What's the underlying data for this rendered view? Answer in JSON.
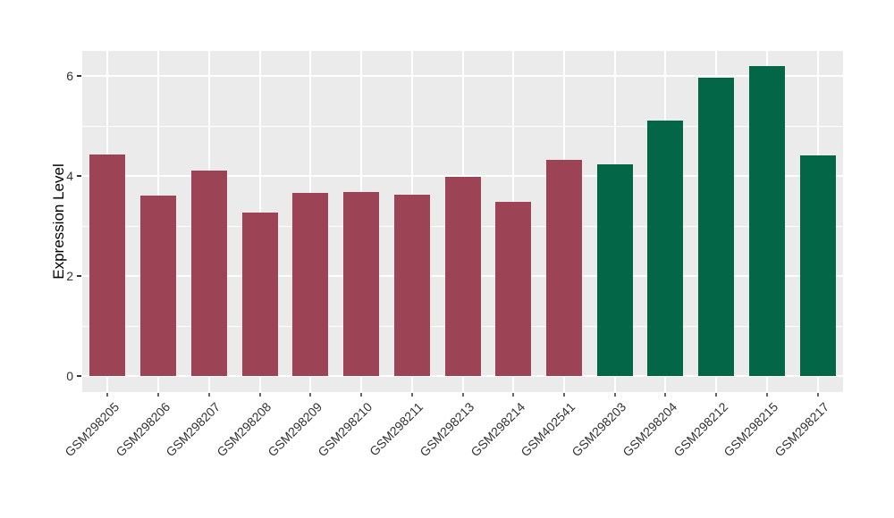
{
  "chart_data": {
    "type": "bar",
    "title": "",
    "xlabel": "",
    "ylabel": "Expression Level",
    "categories": [
      "GSM298205",
      "GSM298206",
      "GSM298207",
      "GSM298208",
      "GSM298209",
      "GSM298210",
      "GSM298211",
      "GSM298213",
      "GSM298214",
      "GSM402541",
      "GSM298203",
      "GSM298204",
      "GSM298212",
      "GSM298215",
      "GSM298217"
    ],
    "values": [
      4.42,
      3.6,
      4.11,
      3.27,
      3.66,
      3.68,
      3.62,
      3.99,
      3.48,
      4.33,
      4.23,
      5.1,
      5.96,
      6.2,
      4.41
    ],
    "bar_colors": [
      "#9c4355",
      "#9c4355",
      "#9c4355",
      "#9c4355",
      "#9c4355",
      "#9c4355",
      "#9c4355",
      "#9c4355",
      "#9c4355",
      "#9c4355",
      "#036647",
      "#036647",
      "#036647",
      "#036647",
      "#036647"
    ],
    "yticks": [
      0,
      2,
      4,
      6
    ],
    "minor_yticks": [
      1,
      3,
      5
    ],
    "ylim": [
      -0.32,
      6.5
    ],
    "legend_position": "none",
    "grid": true,
    "colors": {
      "figure_bg": "#ffffff",
      "panel_bg": "#ebebeb",
      "grid_major": "#ffffff",
      "grid_minor": "#ffffff",
      "tick_text": "#333333",
      "axis_title_text": "#000000",
      "red_group": "#9c4355",
      "green_group": "#036647"
    }
  }
}
